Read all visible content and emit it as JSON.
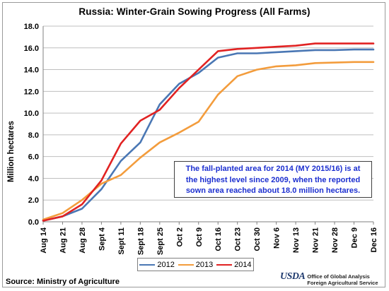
{
  "chart_data": {
    "type": "line",
    "title": "Russia:  Winter-Grain  Sowing  Progress  (All Farms)",
    "ylabel": "Million hectares",
    "xlabel": "",
    "ylim": [
      0,
      18
    ],
    "yticks": [
      "0.0",
      "2.0",
      "4.0",
      "6.0",
      "8.0",
      "10.0",
      "12.0",
      "14.0",
      "16.0",
      "18.0"
    ],
    "categories": [
      "Aug 14",
      "Aug 21",
      "Aug 28",
      "Sept 4",
      "Sept 11",
      "Sept 18",
      "Sept 25",
      "Oct 2",
      "Oct 9",
      "Oct 16",
      "Oct 23",
      "Oct 30",
      "Nov 6",
      "Nov 13",
      "Nov 21",
      "Nov 28",
      "Dec 9",
      "Dec 16"
    ],
    "grid": true,
    "legend_position": "bottom",
    "series": [
      {
        "name": "2012",
        "color": "#4a77b4",
        "values": [
          0.1,
          0.5,
          1.2,
          3.0,
          5.6,
          7.3,
          10.8,
          12.7,
          13.7,
          15.1,
          15.5,
          15.5,
          15.6,
          15.7,
          15.8,
          15.8,
          15.85,
          15.85
        ]
      },
      {
        "name": "2013",
        "color": "#f39c3c",
        "values": [
          0.2,
          0.8,
          2.0,
          3.5,
          4.3,
          5.9,
          7.3,
          8.2,
          9.2,
          11.7,
          13.4,
          14.0,
          14.3,
          14.4,
          14.6,
          14.65,
          14.7,
          14.7
        ]
      },
      {
        "name": "2014",
        "color": "#e12222",
        "values": [
          0.1,
          0.5,
          1.6,
          3.8,
          7.2,
          9.3,
          10.3,
          12.3,
          14.0,
          15.7,
          15.9,
          16.0,
          16.1,
          16.2,
          16.4,
          16.4,
          16.4,
          16.4
        ]
      }
    ]
  },
  "annotation": {
    "line1": "The fall-planted  area for 2014 (MY 2015/16) is at",
    "line2": "the highest level since 2009, when the reported",
    "line3": "sown area reached about 18.0 million hectares."
  },
  "footer": {
    "source": "Source:  Ministry of Agriculture",
    "logo": "USDA",
    "agency_line1": "Office of Global Analysis",
    "agency_line2": "Foreign Agricultural Service"
  }
}
